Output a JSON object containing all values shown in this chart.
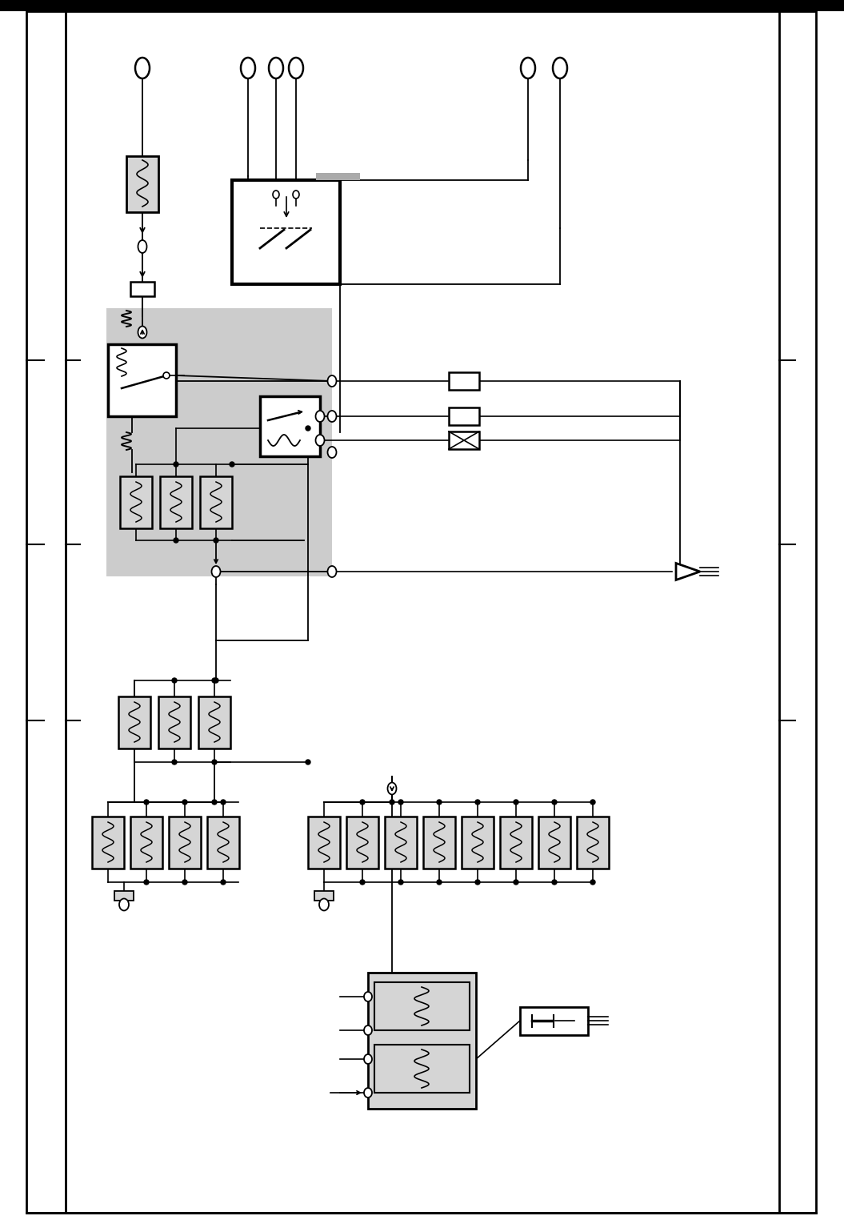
{
  "bg": "#ffffff",
  "lc": "#000000",
  "gray": "#cccccc",
  "comp_bg": "#d5d5d5",
  "fw": 10.55,
  "fh": 15.29,
  "dpi": 100
}
